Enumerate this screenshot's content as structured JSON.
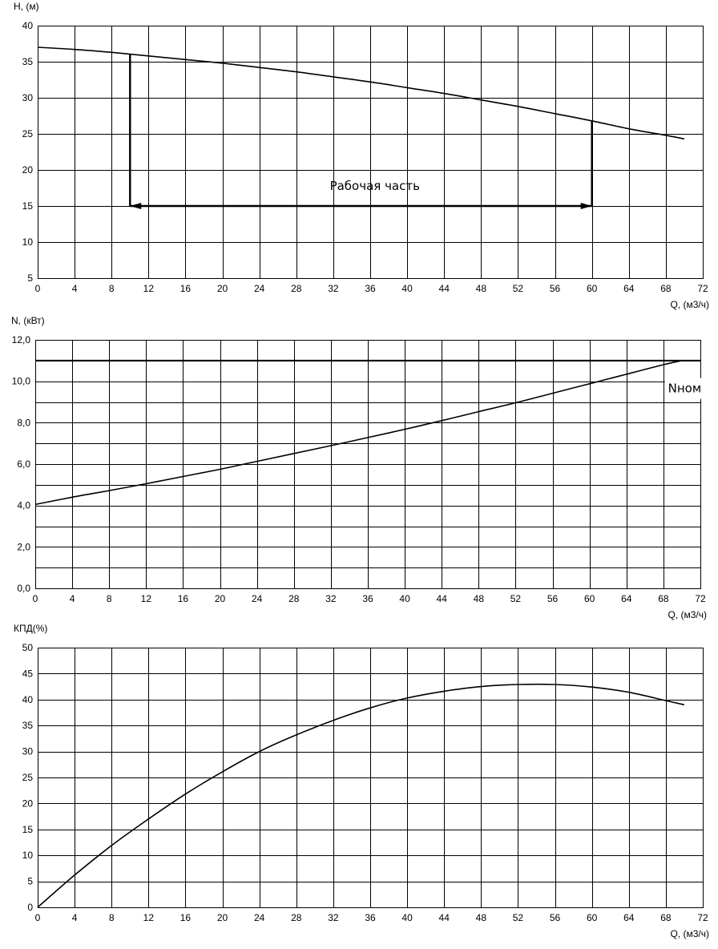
{
  "chart_data": [
    {
      "type": "line",
      "ylabel": "H, (м)",
      "xlabel": "Q, (м3/ч)",
      "xlim": [
        0,
        72
      ],
      "ylim": [
        5,
        40
      ],
      "xticks": [
        0,
        4,
        8,
        12,
        16,
        20,
        24,
        28,
        32,
        36,
        40,
        44,
        48,
        52,
        56,
        60,
        64,
        68,
        72
      ],
      "yticks": [
        5,
        10,
        15,
        20,
        25,
        30,
        35,
        40
      ],
      "ytick_labels": [
        "5",
        "10",
        "15",
        "20",
        "25",
        "30",
        "35",
        "40"
      ],
      "grid": true,
      "series": [
        {
          "x": [
            0,
            4,
            8,
            12,
            16,
            20,
            24,
            28,
            32,
            36,
            40,
            44,
            48,
            52,
            56,
            60,
            64,
            68,
            70
          ],
          "values": [
            37.0,
            36.7,
            36.3,
            35.8,
            35.3,
            34.8,
            34.2,
            33.6,
            32.9,
            32.2,
            31.4,
            30.6,
            29.7,
            28.8,
            27.8,
            26.8,
            25.7,
            24.8,
            24.3
          ]
        }
      ],
      "annotations": [
        {
          "text": "Рабочая часть",
          "x": 36.5,
          "y": 17.2
        },
        {
          "type": "vline",
          "x": 10,
          "y_from": 15,
          "y_to": 36.1
        },
        {
          "type": "vline",
          "x": 60,
          "y_from": 15,
          "y_to": 26.8
        },
        {
          "type": "arrow",
          "x_from": 10,
          "x_to": 60,
          "y": 15
        }
      ]
    },
    {
      "type": "line",
      "ylabel": "N, (кВт)",
      "xlabel": "Q, (м3/ч)",
      "xlim": [
        0,
        72
      ],
      "ylim": [
        0,
        12
      ],
      "xticks": [
        0,
        4,
        8,
        12,
        16,
        20,
        24,
        28,
        32,
        36,
        40,
        44,
        48,
        52,
        56,
        60,
        64,
        68,
        72
      ],
      "yticks": [
        0,
        1,
        2,
        3,
        4,
        5,
        6,
        7,
        8,
        9,
        10,
        11,
        12
      ],
      "ytick_labels": [
        "0,0",
        "",
        "2,0",
        "",
        "4,0",
        "",
        "6,0",
        "",
        "8,0",
        "",
        "10,0",
        "",
        "12,0"
      ],
      "grid": true,
      "series": [
        {
          "x": [
            0,
            4,
            8,
            12,
            16,
            20,
            24,
            28,
            32,
            36,
            40,
            44,
            48,
            52,
            56,
            60,
            64,
            68,
            70
          ],
          "values": [
            4.05,
            4.4,
            4.72,
            5.05,
            5.4,
            5.75,
            6.13,
            6.51,
            6.89,
            7.28,
            7.68,
            8.1,
            8.53,
            8.96,
            9.42,
            9.88,
            10.34,
            10.8,
            11.0
          ]
        }
      ],
      "hline": {
        "y": 11.0,
        "label": "Nном",
        "label_x": 68.5,
        "label_y": 9.65
      }
    },
    {
      "type": "line",
      "ylabel": "КПД(%)",
      "xlabel": "Q, (м3/ч)",
      "xlim": [
        0,
        72
      ],
      "ylim": [
        0,
        50
      ],
      "xticks": [
        0,
        4,
        8,
        12,
        16,
        20,
        24,
        28,
        32,
        36,
        40,
        44,
        48,
        52,
        56,
        60,
        64,
        68,
        72
      ],
      "yticks": [
        0,
        5,
        10,
        15,
        20,
        25,
        30,
        35,
        40,
        45,
        50
      ],
      "ytick_labels": [
        "0",
        "5",
        "10",
        "15",
        "20",
        "25",
        "30",
        "35",
        "40",
        "45",
        "50"
      ],
      "grid": true,
      "series": [
        {
          "x": [
            0,
            4,
            8,
            12,
            16,
            20,
            24,
            28,
            32,
            36,
            40,
            44,
            48,
            52,
            56,
            60,
            64,
            68,
            70
          ],
          "values": [
            0,
            6.2,
            11.9,
            17.0,
            21.8,
            26.1,
            30.0,
            33.2,
            36.0,
            38.4,
            40.3,
            41.6,
            42.5,
            42.9,
            42.9,
            42.4,
            41.4,
            39.8,
            39.0
          ]
        }
      ]
    }
  ]
}
